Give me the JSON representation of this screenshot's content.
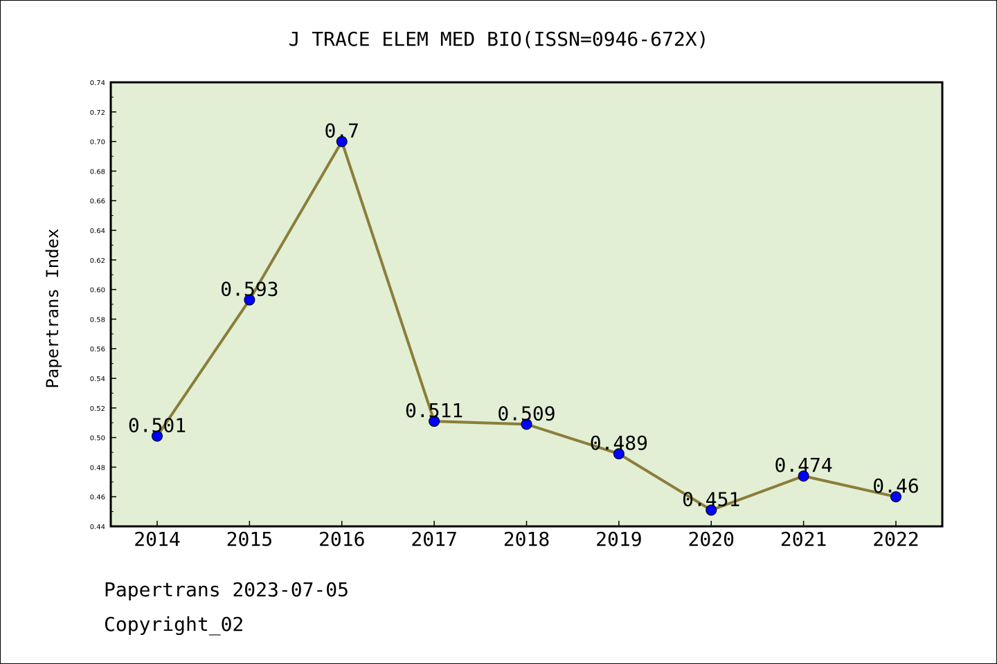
{
  "chart_data": {
    "type": "line",
    "title": "J TRACE ELEM MED BIO(ISSN=0946-672X)",
    "xlabel": "",
    "ylabel": "Papertrans Index",
    "categories": [
      "2014",
      "2015",
      "2016",
      "2017",
      "2018",
      "2019",
      "2020",
      "2021",
      "2022"
    ],
    "series": [
      {
        "values": [
          0.501,
          0.593,
          0.7,
          0.511,
          0.509,
          0.489,
          0.451,
          0.474,
          0.46
        ],
        "data_labels": [
          "0.501",
          "0.593",
          "0.7",
          "0.511",
          "0.509",
          "0.489",
          "0.451",
          "0.474",
          "0.46"
        ],
        "line_color": "#8b7d3a",
        "marker_color": "#0000ff"
      }
    ],
    "ylim": [
      0.44,
      0.74
    ],
    "yticks": [
      "0.44",
      "0.46",
      "0.48",
      "0.50",
      "0.52",
      "0.54",
      "0.56",
      "0.58",
      "0.60",
      "0.62",
      "0.64",
      "0.66",
      "0.68",
      "0.70",
      "0.72",
      "0.74"
    ],
    "plot_background": "#e2efd5",
    "grid": false,
    "legend": "none"
  },
  "footer": {
    "line1": "Papertrans 2023-07-05",
    "line2": "Copyright_02"
  }
}
